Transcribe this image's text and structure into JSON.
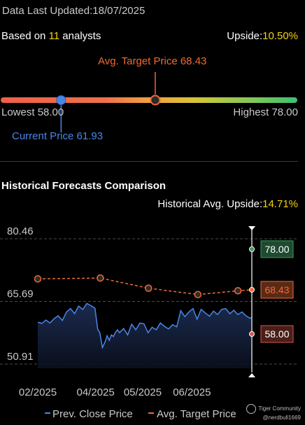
{
  "header": {
    "updated_label": "Data Last Updated:",
    "updated_date": "18/07/2025",
    "based_on": "Based on ",
    "analysts_count": "11",
    "analysts_suffix": " analysts",
    "upside_label": "Upside:",
    "upside_value": "10.50%"
  },
  "gauge": {
    "avg_target_label": "Avg. Target Price 68.43",
    "lowest_label": "Lowest 58.00",
    "highest_label": "Highest 78.00",
    "current_label": "Current Price 61.93",
    "lowest": 58.0,
    "highest": 78.0,
    "avg_target": 68.43,
    "current": 61.93
  },
  "history": {
    "title": "Historical Forecasts Comparison",
    "upside_label": "Historical Avg. Upside:",
    "upside_value": "14.71%"
  },
  "chart_data": {
    "type": "line",
    "title": "",
    "xlabel": "",
    "ylabel": "",
    "ylim": [
      50.91,
      80.46
    ],
    "y_ticks": [
      "80.46",
      "65.69",
      "50.91"
    ],
    "x_ticks": [
      "02/2025",
      "04/2025",
      "05/2025",
      "06/2025"
    ],
    "x_tick_positions": [
      0.0,
      0.27,
      0.49,
      0.72
    ],
    "grid": true,
    "legend_position": "bottom",
    "series": [
      {
        "name": "Prev. Close Price",
        "color": "#4a86e8",
        "x": [
          0.0,
          0.019,
          0.038,
          0.057,
          0.076,
          0.095,
          0.115,
          0.134,
          0.153,
          0.172,
          0.191,
          0.21,
          0.229,
          0.248,
          0.267,
          0.28,
          0.29,
          0.302,
          0.315,
          0.324,
          0.334,
          0.344,
          0.353,
          0.363,
          0.372,
          0.382,
          0.401,
          0.42,
          0.439,
          0.458,
          0.477,
          0.496,
          0.515,
          0.534,
          0.553,
          0.573,
          0.592,
          0.611,
          0.63,
          0.649,
          0.668,
          0.687,
          0.706,
          0.725,
          0.744,
          0.763,
          0.782,
          0.802,
          0.821,
          0.84,
          0.859,
          0.878,
          0.897,
          0.916,
          0.935,
          0.954,
          0.973,
          0.992,
          1.0
        ],
        "values": [
          60.8,
          60.5,
          61.3,
          60.6,
          61.6,
          62.3,
          61.2,
          63.2,
          64.0,
          62.8,
          64.6,
          63.8,
          65.2,
          64.7,
          64.1,
          59.1,
          58.3,
          54.8,
          56.2,
          57.6,
          56.5,
          57.8,
          57.4,
          58.4,
          59.0,
          58.3,
          59.3,
          57.8,
          60.3,
          59.0,
          60.6,
          60.4,
          58.3,
          59.6,
          59.0,
          60.6,
          59.8,
          59.2,
          60.2,
          59.7,
          63.5,
          62.1,
          63.2,
          64.0,
          61.5,
          63.8,
          63.0,
          62.2,
          63.4,
          62.6,
          63.8,
          64.0,
          62.8,
          63.6,
          62.6,
          63.2,
          62.3,
          61.7,
          61.93
        ]
      },
      {
        "name": "Avg. Target Price",
        "color": "#f06a35",
        "x": [
          0.0,
          0.292,
          0.517,
          0.748,
          0.935,
          1.0
        ],
        "values": [
          71.0,
          71.2,
          68.8,
          67.3,
          68.2,
          68.43
        ]
      }
    ],
    "end_labels": [
      {
        "text": "78.00",
        "value": 78.0,
        "color": "#3a9a5a"
      },
      {
        "text": "68.43",
        "value": 68.43,
        "color": "#f06a35"
      },
      {
        "text": "58.00",
        "value": 58.0,
        "color": "#d25a4a"
      }
    ]
  },
  "legend": {
    "close_label": "Prev. Close Price",
    "target_label": "Avg. Target Price"
  },
  "watermark": {
    "brand": "Tiger Community",
    "handle": "@nerdbull1669"
  }
}
